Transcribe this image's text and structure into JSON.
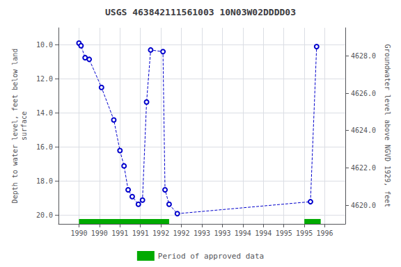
{
  "chart_data": {
    "type": "line",
    "title": "USGS 463842111561003 10N03W02DDDD03",
    "ylabel": "Depth to water level, feet below land\nsurface",
    "y2label": "Groundwater level above NGVD 1929, feet",
    "x": [
      1990.0,
      1990.05,
      1990.15,
      1990.25,
      1990.55,
      1990.85,
      1991.0,
      1991.1,
      1991.2,
      1991.3,
      1991.45,
      1991.55,
      1991.65,
      1991.75,
      1992.05,
      1992.1,
      1992.2,
      1992.4,
      1995.65,
      1995.8
    ],
    "values": [
      9.9,
      10.05,
      10.75,
      10.85,
      12.5,
      14.4,
      16.2,
      17.1,
      18.5,
      18.9,
      19.35,
      19.1,
      13.35,
      10.3,
      10.4,
      18.5,
      19.35,
      19.9,
      19.2,
      10.1
    ],
    "color": "#0000cc",
    "marker": "circle",
    "line_style": "dashed",
    "xlim": [
      1989.5,
      1996.5
    ],
    "xticks": [
      1990,
      {
        "value": 1990.5,
        "label": "1990"
      },
      1991,
      {
        "value": 1991.5,
        "label": "1991"
      },
      1992,
      {
        "value": 1992.5,
        "label": "1992"
      },
      1993,
      {
        "value": 1993.5,
        "label": "1993"
      },
      1994,
      {
        "value": 1994.5,
        "label": "1994"
      },
      1995,
      {
        "value": 1995.5,
        "label": "1995"
      },
      1996
    ],
    "ylim": [
      20.5,
      9.0
    ],
    "yticks": [
      {
        "value": 10.0,
        "label": "10.0"
      },
      {
        "value": 12.0,
        "label": "12.0"
      },
      {
        "value": 14.0,
        "label": "14.0"
      },
      {
        "value": 16.0,
        "label": "16.0"
      },
      {
        "value": 18.0,
        "label": "18.0"
      },
      {
        "value": 20.0,
        "label": "20.0"
      }
    ],
    "y2lim": [
      4619.0,
      4629.5
    ],
    "y2ticks": [
      {
        "value": 4620.0,
        "label": "4620.0"
      },
      {
        "value": 4622.0,
        "label": "4622.0"
      },
      {
        "value": 4624.0,
        "label": "4624.0"
      },
      {
        "value": 4626.0,
        "label": "4626.0"
      },
      {
        "value": 4628.0,
        "label": "4628.0"
      }
    ],
    "bands": {
      "name": "Period of approved data",
      "color": "#00aa00",
      "ranges": [
        [
          1990.0,
          1992.2
        ],
        [
          1995.5,
          1995.9
        ]
      ]
    },
    "grid": true,
    "legend": "bottom"
  }
}
